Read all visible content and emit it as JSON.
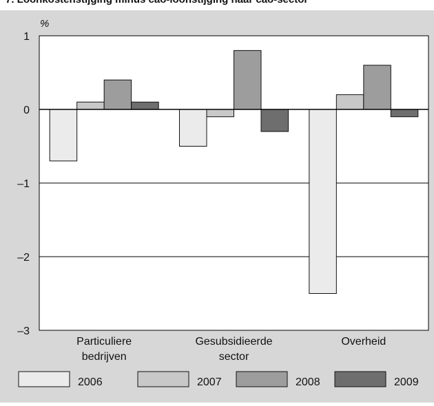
{
  "title": "7. Loonkostenstijging minus cao-loonstijging naar cao-sector",
  "chart_data": {
    "type": "bar",
    "ylabel": "%",
    "ylim": [
      -3,
      1
    ],
    "yticks": [
      1,
      0,
      -1,
      -2,
      -3
    ],
    "ytick_labels": [
      "1",
      "0",
      "–1",
      "–2",
      "–3"
    ],
    "categories": [
      [
        "Particuliere",
        "bedrijven"
      ],
      [
        "Gesubsidieerde",
        "sector"
      ],
      [
        "Overheid"
      ]
    ],
    "series": [
      {
        "name": "2006",
        "color": "#ebebeb",
        "values": [
          -0.7,
          -0.5,
          -2.5
        ]
      },
      {
        "name": "2007",
        "color": "#c8c8c8",
        "values": [
          0.1,
          -0.1,
          0.2
        ]
      },
      {
        "name": "2008",
        "color": "#9d9d9d",
        "values": [
          0.4,
          0.8,
          0.6
        ]
      },
      {
        "name": "2009",
        "color": "#6e6e6e",
        "values": [
          0.1,
          -0.3,
          -0.1
        ]
      }
    ],
    "grid": true,
    "legend_position": "bottom"
  }
}
